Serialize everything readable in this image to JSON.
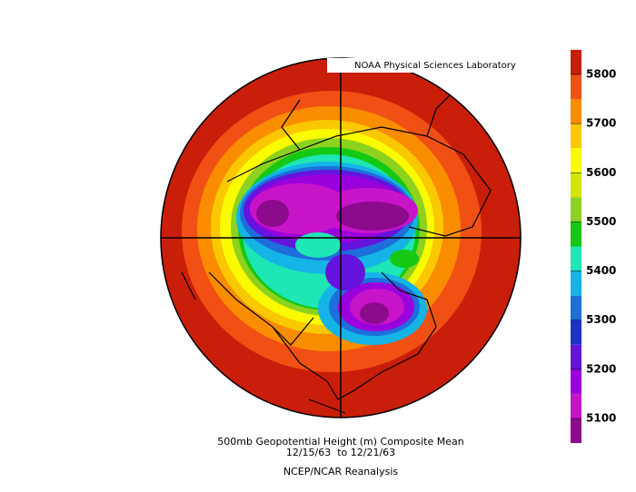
{
  "header": {
    "credit": "NOAA Physical Sciences Laboratory"
  },
  "caption": {
    "title": "500mb Geopotential Height (m) Composite Mean",
    "dates": "12/15/63  to 12/21/63",
    "source": "NCEP/NCAR Reanalysis"
  },
  "colorbar": {
    "ticks": [
      5100,
      5200,
      5300,
      5400,
      5500,
      5600,
      5700,
      5800
    ],
    "colors": [
      "#5c005c",
      "#8c0a8c",
      "#c814c8",
      "#9a00dc",
      "#6414dc",
      "#1e32c8",
      "#1e6edc",
      "#14b4e6",
      "#1ee6b4",
      "#14c814",
      "#8cd21e",
      "#d2e600",
      "#fafa00",
      "#fac800",
      "#fa8c00",
      "#f05014",
      "#c81e0a",
      "#b41400"
    ]
  }
}
